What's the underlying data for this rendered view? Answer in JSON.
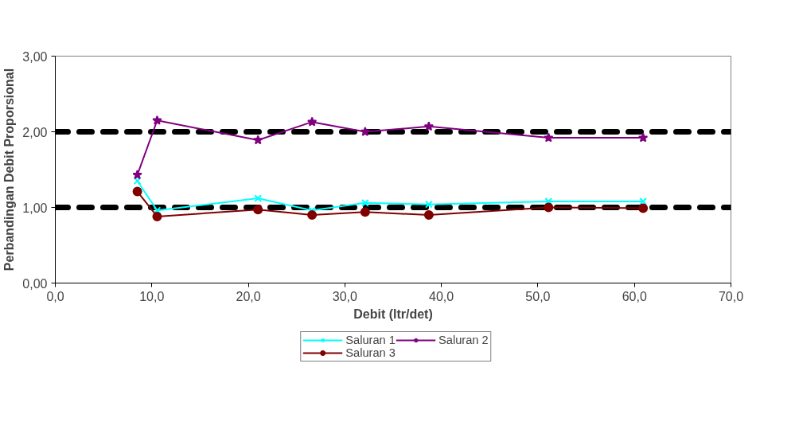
{
  "chart_data": {
    "type": "line",
    "xlabel": "Debit (ltr/det)",
    "ylabel": "Perbandingan Debit Proporsional",
    "x": [
      8.5,
      10.55,
      21.0,
      26.6,
      32.1,
      38.7,
      51.1,
      60.9
    ],
    "series": [
      {
        "name": "Saluran 1",
        "color": "#00ffff",
        "marker": "cross",
        "values": [
          1.35,
          0.96,
          1.12,
          0.96,
          1.06,
          1.04,
          1.08,
          1.08
        ]
      },
      {
        "name": "Saluran 2",
        "color": "#800080",
        "marker": "star",
        "values": [
          1.43,
          2.15,
          1.89,
          2.13,
          2.0,
          2.07,
          1.92,
          1.92
        ]
      },
      {
        "name": "Saluran 3",
        "color": "#800000",
        "marker": "circle",
        "values": [
          1.21,
          0.88,
          0.97,
          0.9,
          0.94,
          0.9,
          1.0,
          0.99
        ]
      }
    ],
    "xlim": [
      0,
      70
    ],
    "xticks": [
      {
        "value": 0,
        "label": "0,0"
      },
      {
        "value": 10,
        "label": "10,0"
      },
      {
        "value": 20,
        "label": "20,0"
      },
      {
        "value": 30,
        "label": "30,0"
      },
      {
        "value": 40,
        "label": "40,0"
      },
      {
        "value": 50,
        "label": "50,0"
      },
      {
        "value": 60,
        "label": "60,0"
      },
      {
        "value": 70,
        "label": "70,0"
      }
    ],
    "ylim": [
      0,
      3
    ],
    "yticks": [
      {
        "value": 0,
        "label": "0,00"
      },
      {
        "value": 1,
        "label": "1,00"
      },
      {
        "value": 2,
        "label": "2,00"
      },
      {
        "value": 3,
        "label": "3,00"
      }
    ],
    "ref_lines": [
      {
        "axis": "y",
        "value": 1,
        "color": "#000000",
        "line_style": "dashed"
      },
      {
        "axis": "y",
        "value": 2,
        "color": "#000000",
        "line_style": "dashed"
      }
    ],
    "grid": false,
    "legend": "bottom",
    "line_style": "solid"
  }
}
